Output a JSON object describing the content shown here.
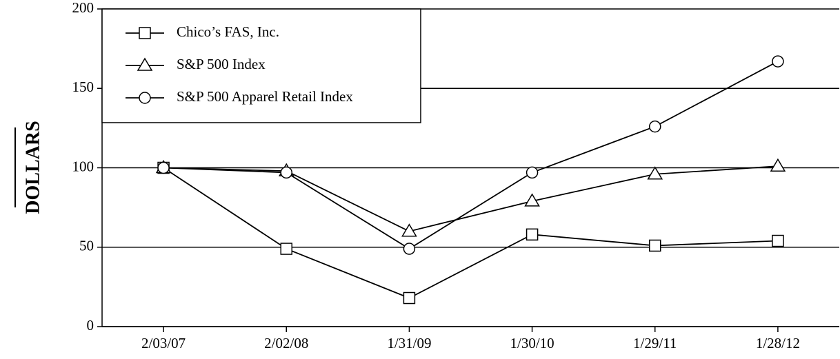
{
  "chart_data": {
    "type": "line",
    "y_label": "DOLLARS",
    "categories": [
      "2/03/07",
      "2/02/08",
      "1/31/09",
      "1/30/10",
      "1/29/11",
      "1/28/12"
    ],
    "series": [
      {
        "name": "Chico’s FAS, Inc.",
        "color": "#000000",
        "marker": "square",
        "values": [
          100,
          49,
          18,
          58,
          51,
          54
        ]
      },
      {
        "name": "S&P 500 Index",
        "color": "#000000",
        "marker": "triangle",
        "values": [
          100,
          98,
          60,
          79,
          96,
          101
        ]
      },
      {
        "name": "S&P 500 Apparel Retail Index",
        "color": "#000000",
        "marker": "circle",
        "values": [
          100,
          97,
          49,
          97,
          126,
          167
        ]
      }
    ],
    "ylim": [
      0,
      200
    ],
    "yticks": [
      0,
      50,
      100,
      150,
      200
    ],
    "grid": true,
    "legend": "upper left"
  }
}
